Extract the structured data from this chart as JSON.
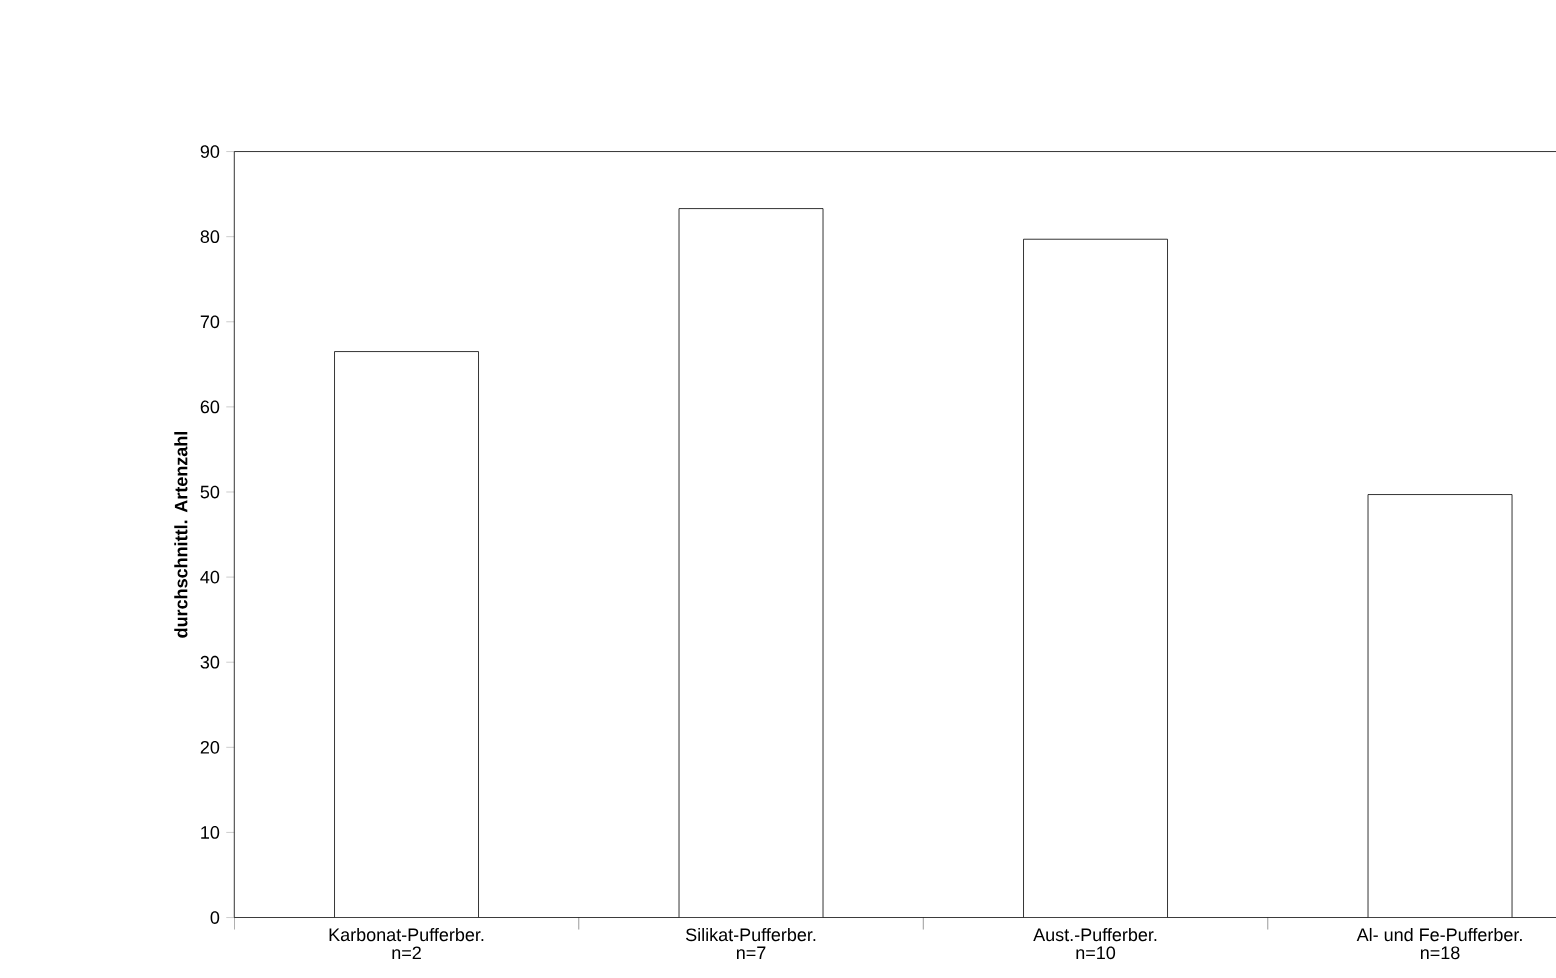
{
  "chart_data": {
    "type": "bar",
    "ylabel": "durchschnittl. Artenzahl",
    "categories": [
      "Karbonat-Pufferber. n=2",
      "Silikat-Pufferber. n=7",
      "Aust.-Pufferber. n=10",
      "Al- und Fe-Pufferber. n=18"
    ],
    "values": [
      66.5,
      83.3,
      79.7,
      49.7
    ],
    "color": "#ffffff",
    "ylim": [
      0,
      90
    ],
    "yticks": [
      0,
      10,
      20,
      30,
      40,
      50,
      60,
      70,
      80,
      90
    ],
    "grid": false
  }
}
